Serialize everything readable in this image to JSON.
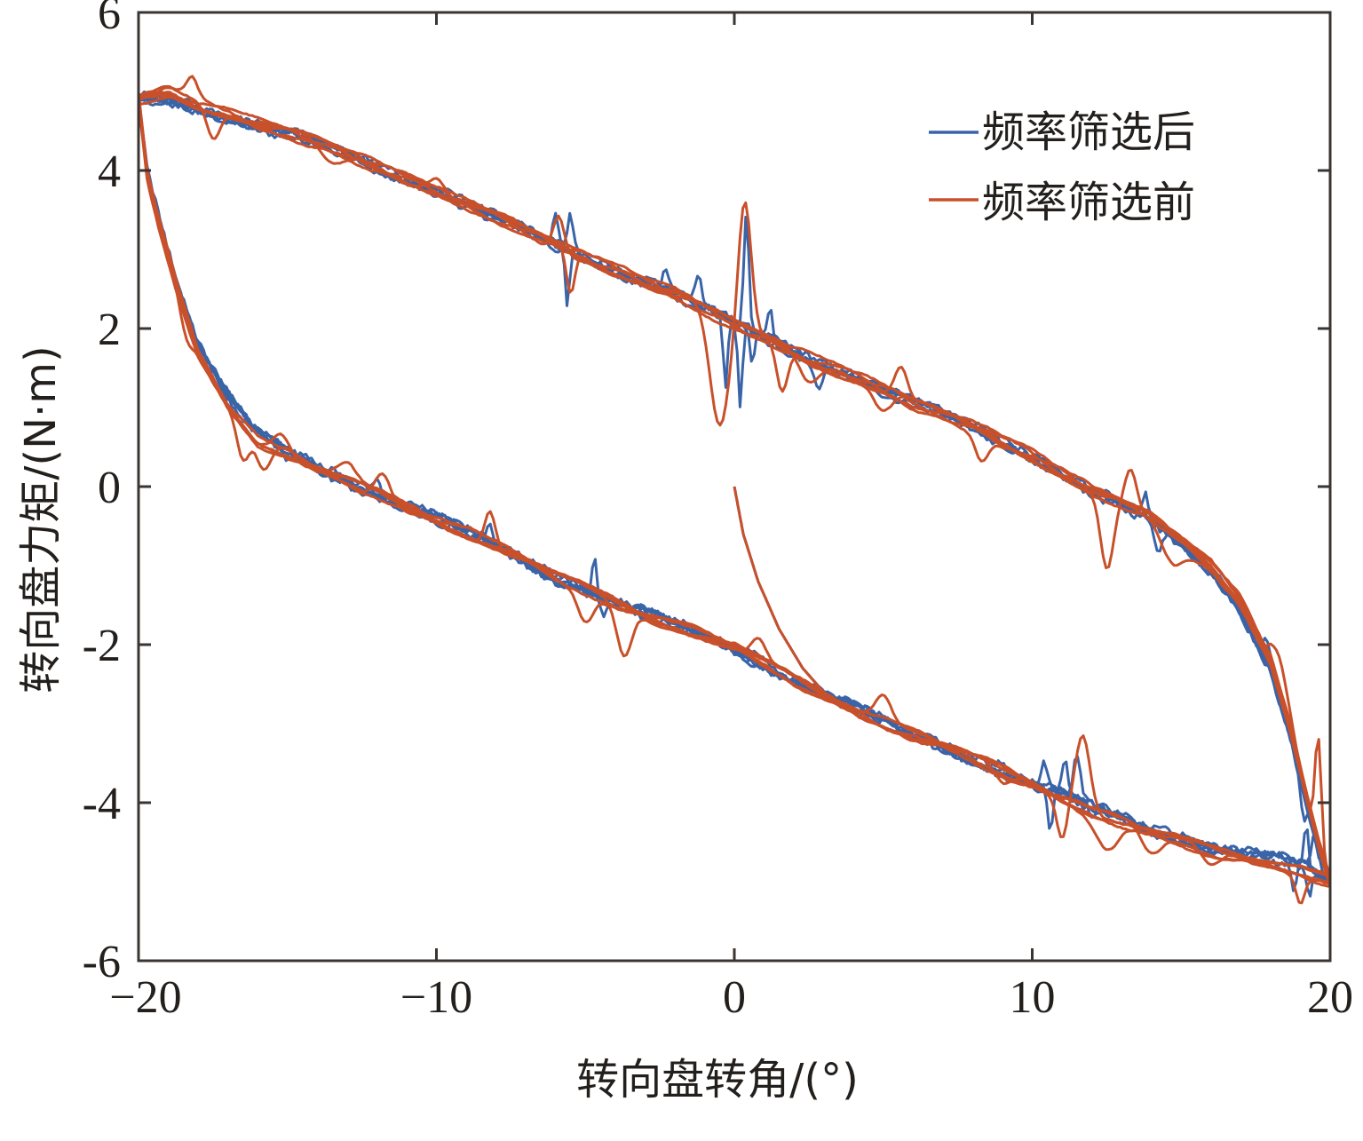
{
  "chart_data": {
    "type": "line",
    "title": "",
    "xlabel": "转向盘转角/(°)",
    "ylabel": "转向盘力矩/(N·m)",
    "xlim": [
      -20,
      20
    ],
    "ylim": [
      -6,
      6
    ],
    "xticks": [
      -20,
      -10,
      0,
      10,
      20
    ],
    "xtick_labels": [
      "−20",
      "−10",
      "0",
      "10",
      "20"
    ],
    "yticks": [
      -6,
      -4,
      -2,
      0,
      2,
      4,
      6
    ],
    "ytick_labels": [
      "-6",
      "-4",
      "-2",
      "0",
      "2",
      "4",
      "6"
    ],
    "grid": false,
    "legend_position": "top-right",
    "series": [
      {
        "name": "频率筛选后",
        "color": "#3a64a8",
        "description": "Hysteresis loop of steering wheel torque vs. angle after frequency filtering (several overlapping cycles)",
        "initial_branch": {
          "x": [
            0,
            0.3,
            0.8,
            1.5,
            2.3,
            3.0,
            3.6
          ],
          "y": [
            0.0,
            -0.6,
            -1.2,
            -1.8,
            -2.3,
            -2.6,
            -2.8
          ]
        },
        "upper_branch": {
          "x": [
            -20,
            -19,
            -18,
            -16,
            -14,
            -12,
            -10,
            -8,
            -6,
            -4,
            -2,
            0,
            2,
            4,
            6,
            8,
            10,
            12,
            14,
            16,
            17,
            18,
            18.7,
            19.2,
            19.6,
            20
          ],
          "y": [
            4.9,
            4.9,
            4.8,
            4.55,
            4.35,
            4.05,
            3.75,
            3.4,
            3.05,
            2.75,
            2.45,
            2.05,
            1.7,
            1.4,
            1.05,
            0.75,
            0.4,
            -0.05,
            -0.45,
            -1.05,
            -1.55,
            -2.3,
            -3.2,
            -4.0,
            -4.6,
            -5.0
          ]
        },
        "lower_branch": {
          "x": [
            20,
            19,
            18,
            16,
            14,
            12,
            10,
            8,
            6,
            4,
            2,
            0,
            -2,
            -4,
            -6,
            -8,
            -10,
            -12,
            -14,
            -16,
            -17,
            -18,
            -18.7,
            -19.3,
            -19.7,
            -20
          ],
          "y": [
            -5.0,
            -4.8,
            -4.7,
            -4.55,
            -4.35,
            -4.05,
            -3.75,
            -3.45,
            -3.15,
            -2.8,
            -2.45,
            -2.05,
            -1.75,
            -1.45,
            -1.15,
            -0.75,
            -0.4,
            -0.1,
            0.25,
            0.65,
            1.15,
            1.8,
            2.6,
            3.4,
            4.0,
            4.9
          ]
        }
      },
      {
        "name": "频率筛选前",
        "color": "#c8502a",
        "description": "Hysteresis loop of steering wheel torque vs. angle before frequency filtering, with larger spikes (e.g. peak ≈3.65 and dip ≈0.6 near 0°, spike ≈-2.95 near 12°)",
        "initial_branch": {
          "x": [
            0,
            0.3,
            0.8,
            1.5,
            2.3,
            3.0,
            3.6
          ],
          "y": [
            0.0,
            -0.6,
            -1.2,
            -1.8,
            -2.3,
            -2.6,
            -2.8
          ]
        },
        "upper_branch": {
          "x": [
            -20,
            -19,
            -18,
            -16,
            -14,
            -12,
            -10,
            -8,
            -6,
            -4,
            -2,
            0,
            2,
            4,
            6,
            8,
            10,
            12,
            14,
            16,
            17,
            18,
            18.7,
            19.2,
            19.6,
            20
          ],
          "y": [
            4.9,
            5.0,
            4.85,
            4.6,
            4.35,
            4.05,
            3.75,
            3.4,
            3.05,
            2.75,
            2.45,
            2.05,
            1.7,
            1.4,
            1.05,
            0.75,
            0.4,
            -0.05,
            -0.4,
            -1.0,
            -1.45,
            -2.2,
            -3.1,
            -3.9,
            -4.5,
            -5.0
          ]
        },
        "lower_branch": {
          "x": [
            20,
            19,
            18,
            16,
            14,
            12,
            10,
            8,
            6,
            4,
            2,
            0,
            -2,
            -4,
            -6,
            -8,
            -10,
            -12,
            -14,
            -16,
            -17,
            -18,
            -18.7,
            -19.3,
            -19.7,
            -20
          ],
          "y": [
            -5.0,
            -4.85,
            -4.75,
            -4.6,
            -4.4,
            -4.1,
            -3.75,
            -3.45,
            -3.15,
            -2.8,
            -2.45,
            -2.05,
            -1.75,
            -1.45,
            -1.15,
            -0.75,
            -0.4,
            -0.1,
            0.2,
            0.6,
            1.05,
            1.7,
            2.5,
            3.3,
            3.9,
            4.9
          ]
        }
      }
    ],
    "annotations": [
      {
        "series": "频率筛选后",
        "x": 0.4,
        "y": 3.5,
        "note": "spike"
      },
      {
        "series": "频率筛选前",
        "x": 0.4,
        "y": 3.65,
        "note": "spike"
      },
      {
        "series": "频率筛选前",
        "x": -0.5,
        "y": 0.6,
        "note": "dip"
      },
      {
        "series": "频率筛选前",
        "x": 11.8,
        "y": -2.95,
        "note": "spike"
      },
      {
        "series": "频率筛选前",
        "x": 12.5,
        "y": -1.0,
        "note": "dip"
      }
    ]
  }
}
